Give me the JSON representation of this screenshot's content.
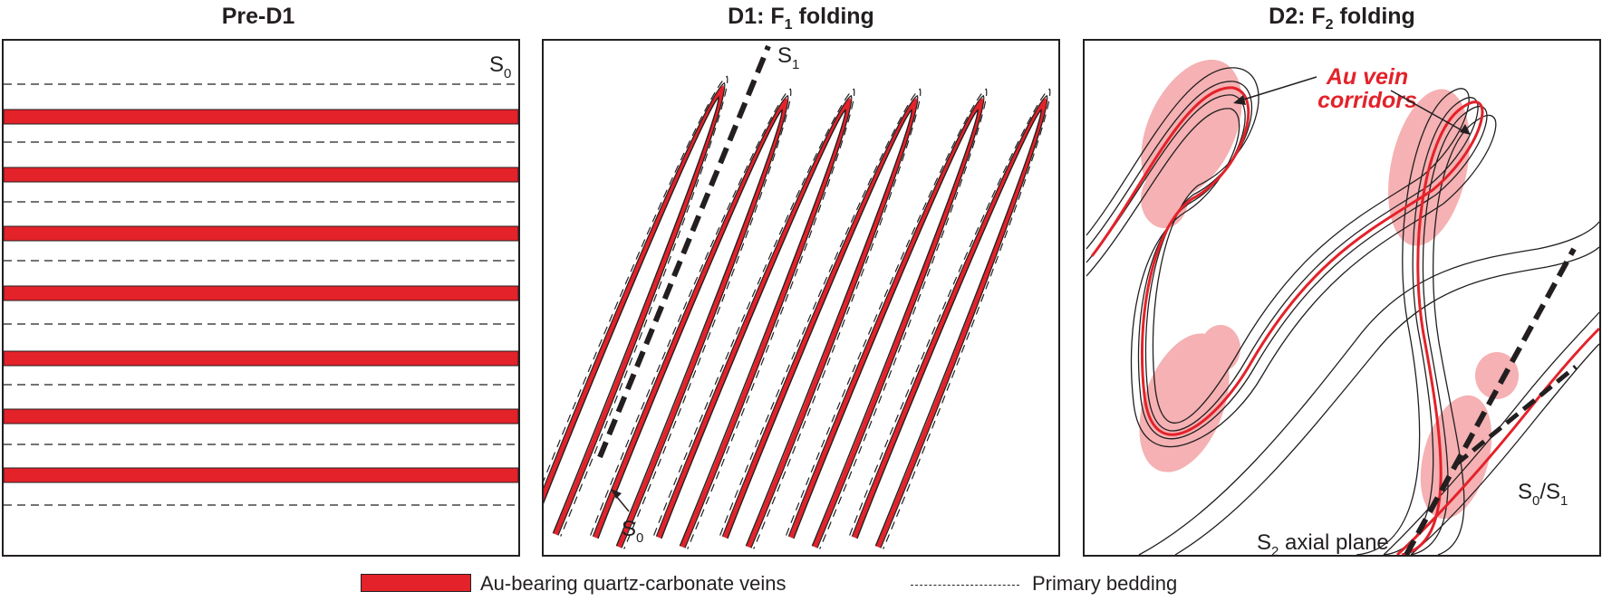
{
  "panels": [
    {
      "title_main": "Pre-D1",
      "title_sub": "",
      "title_post": ""
    },
    {
      "title_main": "D1: F",
      "title_sub": "1",
      "title_post": " folding"
    },
    {
      "title_main": "D2: F",
      "title_sub": "2",
      "title_post": " folding"
    }
  ],
  "labels": {
    "s0_pre": {
      "main": "S",
      "sub": "0"
    },
    "s1": {
      "main": "S",
      "sub": "1"
    },
    "s0_d1": {
      "main": "S",
      "sub": "0"
    },
    "s0s1": {
      "a": "S",
      "a_sub": "0",
      "slash": "/S",
      "b_sub": "1"
    },
    "s2": {
      "main": "S",
      "sub": "2",
      "rest": " axial plane"
    },
    "au_line1": "Au vein",
    "au_line2": "corridors"
  },
  "legend": {
    "veins": "Au-bearing quartz-carbonate veins",
    "bedding": "Primary bedding"
  },
  "colors": {
    "vein_red": "#e3222a",
    "corridor_pink": "#f4a3a6",
    "ink": "#231f20"
  }
}
